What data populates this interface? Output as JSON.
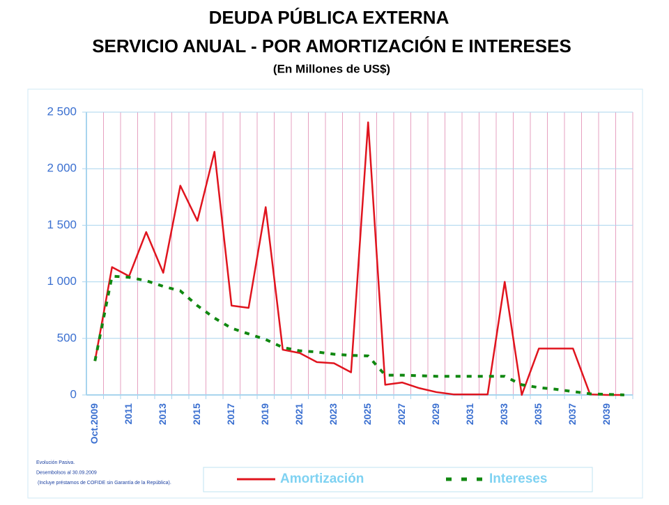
{
  "chart_data": {
    "type": "line",
    "title": "DEUDA PÚBLICA EXTERNA",
    "subtitle": "SERVICIO ANUAL - POR AMORTIZACIÓN E INTERESES",
    "unit_note": "(En Millones de US$)",
    "categories": [
      "Oct.2009",
      null,
      "2011",
      null,
      "2013",
      null,
      "2015",
      null,
      "2017",
      null,
      "2019",
      null,
      "2021",
      null,
      "2023",
      null,
      "2025",
      null,
      "2027",
      null,
      "2029",
      null,
      "2031",
      null,
      "2033",
      null,
      "2035",
      null,
      "2037",
      null,
      "2039",
      null
    ],
    "series": [
      {
        "name": "Amortización",
        "color": "#e0141e",
        "dash": false,
        "values": [
          300,
          1130,
          1050,
          1440,
          1080,
          1850,
          1540,
          2150,
          790,
          770,
          1660,
          400,
          370,
          290,
          280,
          200,
          2410,
          90,
          110,
          60,
          25,
          5,
          5,
          5,
          1000,
          0,
          410,
          410,
          410,
          5,
          0,
          0
        ]
      },
      {
        "name": "Intereses",
        "color": "#118811",
        "dash": true,
        "values": [
          300,
          1050,
          1040,
          1010,
          960,
          920,
          790,
          680,
          590,
          540,
          490,
          420,
          390,
          380,
          360,
          350,
          345,
          175,
          175,
          170,
          165,
          165,
          165,
          165,
          165,
          90,
          65,
          50,
          30,
          10,
          5,
          0
        ]
      }
    ],
    "ylim": [
      0,
      2500
    ],
    "yticks": [
      {
        "value": 0,
        "label": "0"
      },
      {
        "value": 500,
        "label": "500"
      },
      {
        "value": 1000,
        "label": "1 000"
      },
      {
        "value": 1500,
        "label": "1 500"
      },
      {
        "value": 2000,
        "label": "2 000"
      },
      {
        "value": 2500,
        "label": "2 500"
      }
    ],
    "grid": true,
    "legend": "bottom",
    "notes": [
      "Evolución Pasiva.",
      "Desembolsos al 30.09.2009",
      "(Incluye préstamos de COFIDE sin Garantía de la República)."
    ]
  }
}
